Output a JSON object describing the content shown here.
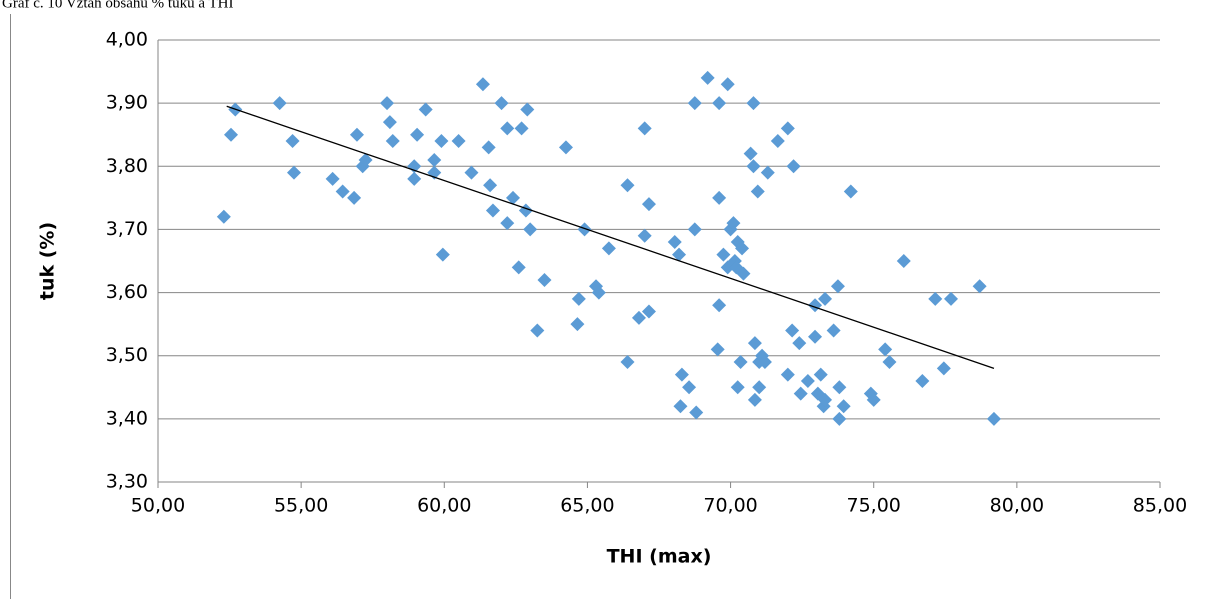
{
  "chart_data": {
    "type": "scatter",
    "title": "Graf č. 10 Vztah obsahu % tuku a THI",
    "x_label": "THI (max)",
    "y_label": "tuk (%)",
    "color": "#5b9bd5",
    "trendline_color": "#000000",
    "grid": true,
    "xlim": [
      50,
      85
    ],
    "ylim": [
      3.3,
      4.0
    ],
    "xticks": [
      {
        "value": 50,
        "label": "50,00"
      },
      {
        "value": 55,
        "label": "55,00"
      },
      {
        "value": 60,
        "label": "60,00"
      },
      {
        "value": 65,
        "label": "65,00"
      },
      {
        "value": 70,
        "label": "70,00"
      },
      {
        "value": 75,
        "label": "75,00"
      },
      {
        "value": 80,
        "label": "80,00"
      },
      {
        "value": 85,
        "label": "85,00"
      }
    ],
    "yticks": [
      {
        "value": 3.3,
        "label": "3,30"
      },
      {
        "value": 3.4,
        "label": "3,40"
      },
      {
        "value": 3.5,
        "label": "3,50"
      },
      {
        "value": 3.6,
        "label": "3,60"
      },
      {
        "value": 3.7,
        "label": "3,70"
      },
      {
        "value": 3.8,
        "label": "3,80"
      },
      {
        "value": 3.9,
        "label": "3,90"
      },
      {
        "value": 4.0,
        "label": "4,00"
      }
    ],
    "x": [
      52.3,
      52.55,
      52.7,
      54.25,
      54.7,
      54.75,
      56.1,
      56.45,
      56.85,
      56.95,
      57.15,
      57.25,
      58.0,
      58.1,
      58.2,
      58.95,
      58.95,
      59.05,
      59.35,
      59.65,
      59.65,
      59.9,
      59.95,
      60.5,
      60.95,
      61.35,
      61.55,
      61.6,
      61.7,
      62.0,
      62.2,
      62.2,
      62.4,
      62.6,
      62.7,
      62.9,
      62.85,
      63.0,
      63.25,
      63.5,
      64.25,
      64.65,
      64.7,
      64.9,
      65.3,
      65.4,
      65.75,
      66.4,
      66.4,
      66.8,
      67.0,
      67.0,
      67.15,
      67.15,
      68.05,
      68.2,
      68.25,
      68.3,
      68.55,
      68.75,
      68.75,
      68.8,
      69.2,
      69.55,
      69.6,
      69.6,
      69.6,
      69.75,
      69.9,
      69.9,
      70.0,
      70.1,
      70.15,
      70.2,
      70.25,
      70.25,
      70.35,
      70.4,
      70.45,
      70.7,
      70.8,
      70.8,
      70.85,
      70.85,
      70.95,
      71.0,
      71.0,
      71.1,
      71.2,
      71.3,
      71.65,
      72.0,
      72.0,
      72.15,
      72.2,
      72.4,
      72.45,
      72.7,
      72.95,
      72.95,
      73.05,
      73.15,
      73.25,
      73.3,
      73.3,
      73.6,
      73.75,
      73.8,
      73.8,
      73.95,
      74.2,
      74.9,
      75.0,
      75.4,
      75.55,
      76.05,
      76.7,
      77.15,
      77.45,
      77.7,
      78.7,
      79.2
    ],
    "values": [
      3.72,
      3.85,
      3.89,
      3.9,
      3.84,
      3.79,
      3.78,
      3.76,
      3.75,
      3.85,
      3.8,
      3.81,
      3.9,
      3.87,
      3.84,
      3.8,
      3.78,
      3.85,
      3.89,
      3.81,
      3.79,
      3.84,
      3.66,
      3.84,
      3.79,
      3.93,
      3.83,
      3.77,
      3.73,
      3.9,
      3.71,
      3.86,
      3.75,
      3.64,
      3.86,
      3.89,
      3.73,
      3.7,
      3.54,
      3.62,
      3.83,
      3.55,
      3.59,
      3.7,
      3.61,
      3.6,
      3.67,
      3.77,
      3.49,
      3.56,
      3.86,
      3.69,
      3.57,
      3.74,
      3.68,
      3.66,
      3.42,
      3.47,
      3.45,
      3.7,
      3.9,
      3.41,
      3.94,
      3.51,
      3.9,
      3.58,
      3.75,
      3.66,
      3.93,
      3.64,
      3.7,
      3.71,
      3.65,
      3.64,
      3.68,
      3.45,
      3.49,
      3.67,
      3.63,
      3.82,
      3.9,
      3.8,
      3.52,
      3.43,
      3.76,
      3.45,
      3.49,
      3.5,
      3.49,
      3.79,
      3.84,
      3.86,
      3.47,
      3.54,
      3.8,
      3.52,
      3.44,
      3.46,
      3.58,
      3.53,
      3.44,
      3.47,
      3.42,
      3.59,
      3.43,
      3.54,
      3.61,
      3.45,
      3.4,
      3.42,
      3.76,
      3.44,
      3.43,
      3.51,
      3.49,
      3.65,
      3.46,
      3.59,
      3.48,
      3.59,
      3.61,
      3.4
    ],
    "trendline": {
      "x": [
        52.4,
        79.2
      ],
      "y": [
        3.895,
        3.48
      ]
    }
  }
}
